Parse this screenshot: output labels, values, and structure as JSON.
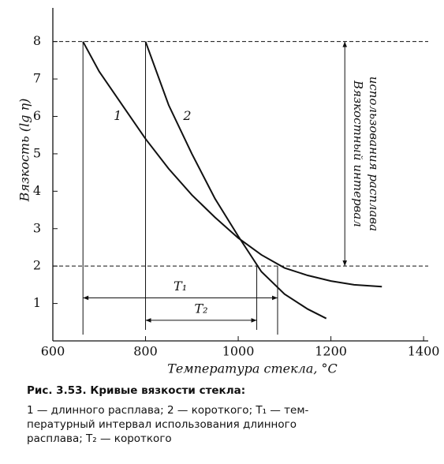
{
  "chart_data": {
    "type": "line",
    "ylabel": "Вязкость (lg η)",
    "xlabel": "Температура стекла, °C",
    "xlim": [
      600,
      1410
    ],
    "ylim": [
      0,
      8.9
    ],
    "xticks": [
      600,
      800,
      1000,
      1200,
      1400
    ],
    "yticks": [
      1,
      2,
      3,
      4,
      5,
      6,
      7,
      8
    ],
    "hlines": [
      8,
      2
    ],
    "color": "#111111",
    "series": [
      {
        "name": "1",
        "label_at": [
          740,
          6.0
        ],
        "x": [
          665,
          700,
          750,
          800,
          850,
          900,
          950,
          1000,
          1050,
          1100,
          1150,
          1200,
          1250,
          1310
        ],
        "values": [
          8,
          7.2,
          6.3,
          5.4,
          4.6,
          3.9,
          3.3,
          2.75,
          2.3,
          1.95,
          1.75,
          1.6,
          1.5,
          1.45
        ]
      },
      {
        "name": "2",
        "label_at": [
          890,
          6.0
        ],
        "x": [
          800,
          850,
          900,
          950,
          1000,
          1050,
          1100,
          1150,
          1190
        ],
        "values": [
          8,
          6.3,
          5.0,
          3.8,
          2.8,
          1.85,
          1.25,
          0.85,
          0.6
        ]
      }
    ],
    "intervals": [
      {
        "name": "T₁",
        "x": [
          665,
          1085
        ],
        "y": 1.15,
        "tops": [
          8,
          2
        ]
      },
      {
        "name": "T₂",
        "x": [
          800,
          1040
        ],
        "y": 0.55,
        "tops": [
          8,
          2
        ]
      }
    ],
    "range_arrow": {
      "x": 1230,
      "y": [
        8,
        2
      ],
      "lines": [
        "Вязкостный интервал",
        "использования расплава"
      ]
    }
  },
  "caption": {
    "title": "Рис. 3.53. Кривые вязкости стекла:",
    "lines": [
      "1 — длинного расплава; 2 — короткого; T₁ — тем-",
      "пературный интервал использования длинного",
      "расплава; T₂ — короткого"
    ]
  }
}
